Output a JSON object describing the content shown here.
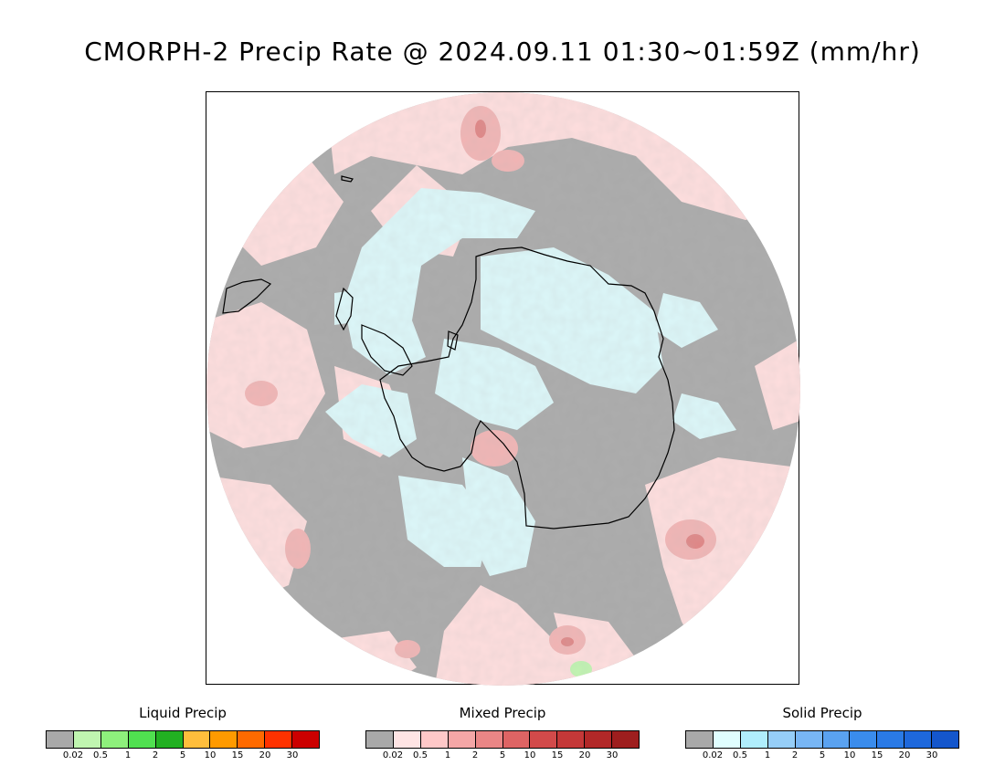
{
  "title": "CMORPH-2 Precip Rate @ 2024.09.11 01:30~01:59Z (mm/hr)",
  "map": {
    "projection": "south-polar-stereographic",
    "colors": {
      "no_precip_gray": "#a9a9a9",
      "mixed_light_pink": "#ffdede",
      "mixed_pink": "#f2b4b4",
      "mixed_deep": "#e08484",
      "solid_light_cyan": "#dcf8fa",
      "liquid_light_green": "#c0f5b0",
      "coastline": "#000000"
    }
  },
  "legends": [
    {
      "title": "Liquid Precip",
      "colors": [
        "#a9a9a9",
        "#c0f5b0",
        "#8ef07c",
        "#50e050",
        "#22b022",
        "#ffbe3c",
        "#ff9a00",
        "#ff6a00",
        "#ff3200",
        "#cc0000"
      ],
      "ticks": [
        "0.02",
        "0.5",
        "1",
        "2",
        "5",
        "10",
        "15",
        "20",
        "30"
      ]
    },
    {
      "title": "Mixed Precip",
      "colors": [
        "#a9a9a9",
        "#ffe4e4",
        "#ffc8c8",
        "#f4a6a6",
        "#ea8686",
        "#de6464",
        "#d24a4a",
        "#c43838",
        "#b22828",
        "#9e1e1e"
      ],
      "ticks": [
        "0.02",
        "0.5",
        "1",
        "2",
        "5",
        "10",
        "15",
        "20",
        "30"
      ]
    },
    {
      "title": "Solid Precip",
      "colors": [
        "#a9a9a9",
        "#e0feff",
        "#b0eefc",
        "#96cef8",
        "#78b6f4",
        "#5aa2f0",
        "#3a8cec",
        "#2a7ae6",
        "#1e68dc",
        "#1456cc"
      ],
      "ticks": [
        "0.02",
        "0.5",
        "1",
        "2",
        "5",
        "10",
        "15",
        "20",
        "30"
      ]
    }
  ]
}
